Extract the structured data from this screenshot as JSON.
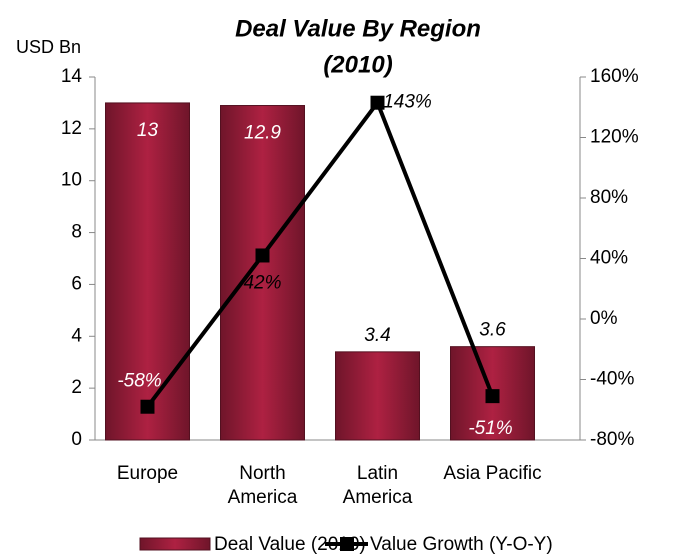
{
  "chart_data": {
    "type": "bar",
    "title": [
      "Deal Value By Region",
      "(2010)"
    ],
    "y_label": "USD Bn",
    "categories": [
      "Europe",
      "North America",
      "Latin America",
      "Asia Pacific"
    ],
    "series": [
      {
        "name": "Deal Value (2010)",
        "type": "bar",
        "color": "#8b1a35",
        "values": [
          13,
          12.9,
          3.4,
          3.6
        ]
      },
      {
        "name": "Value Growth (Y-O-Y)",
        "type": "line",
        "axis": "y2",
        "color": "#000000",
        "values": [
          -58,
          42,
          143,
          -51
        ],
        "value_labels": [
          "-58%",
          "42%",
          "143%",
          "-51%"
        ]
      }
    ],
    "ylim": [
      0,
      14
    ],
    "yticks": [
      0,
      2,
      4,
      6,
      8,
      10,
      12,
      14
    ],
    "y2lim": [
      -80,
      160
    ],
    "y2ticks": [
      {
        "value": -80,
        "label": "-80%"
      },
      {
        "value": -40,
        "label": "-40%"
      },
      {
        "value": 0,
        "label": "0%"
      },
      {
        "value": 40,
        "label": "40%"
      },
      {
        "value": 80,
        "label": "80%"
      },
      {
        "value": 120,
        "label": "120%"
      },
      {
        "value": 160,
        "label": "160%"
      }
    ],
    "legend": "bottom"
  }
}
